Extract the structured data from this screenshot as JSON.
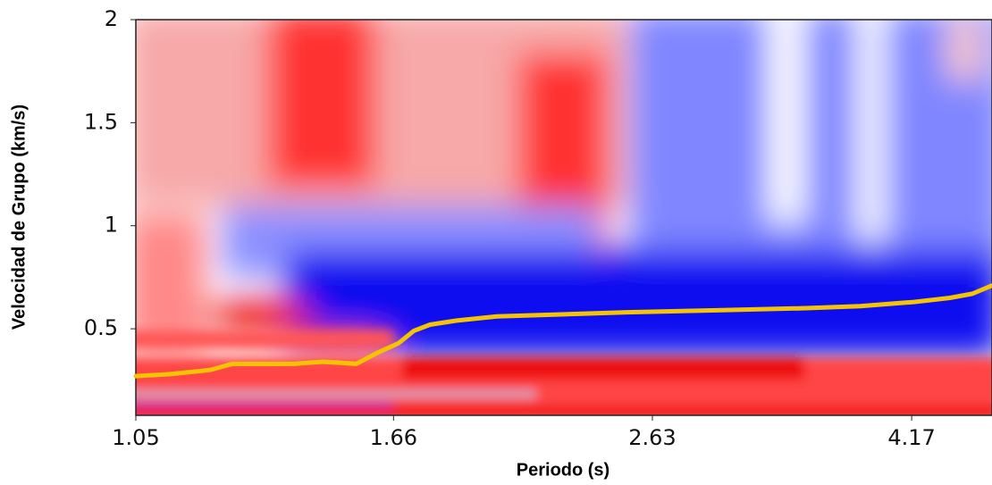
{
  "chart_data": {
    "type": "line",
    "x_label": "Periodo (s)",
    "y_label": "Velocidad de Grupo (km/s)",
    "xscale": "log",
    "xlim": [
      1.05,
      4.81
    ],
    "xticks": [
      1.05,
      1.66,
      2.63,
      4.17
    ],
    "ylim": [
      0.08,
      2
    ],
    "yticks": [
      0.5,
      1,
      1.5,
      2
    ],
    "series": [
      {
        "color": "#f5c400",
        "x": [
          1.05,
          1.116,
          1.198,
          1.247,
          1.394,
          1.463,
          1.554,
          1.609,
          1.675,
          1.721,
          1.771,
          1.858,
          1.995,
          2.515,
          2.949,
          3.458,
          3.806,
          4.187,
          4.463,
          4.645,
          4.81
        ],
        "values": [
          0.27,
          0.28,
          0.3,
          0.33,
          0.33,
          0.34,
          0.33,
          0.38,
          0.43,
          0.49,
          0.52,
          0.54,
          0.56,
          0.58,
          0.59,
          0.6,
          0.61,
          0.63,
          0.65,
          0.67,
          0.71
        ]
      }
    ]
  }
}
